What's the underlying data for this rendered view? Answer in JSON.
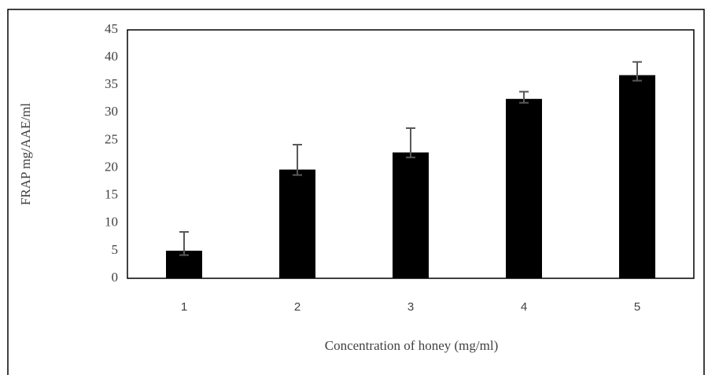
{
  "chart_data": {
    "type": "bar",
    "x_label": "Concentration of honey (mg/ml)",
    "y_label": "FRAP mg/AAE/ml",
    "categories": [
      "1",
      "2",
      "3",
      "4",
      "5"
    ],
    "values": [
      5,
      19.7,
      22.8,
      32.5,
      36.8
    ],
    "error_plus": [
      3.4,
      4.5,
      4.4,
      1.3,
      2.4
    ],
    "error_minus": [
      0.8,
      1.0,
      0.9,
      0.7,
      1.0
    ],
    "color": "#000000",
    "error_color": "#595959",
    "ylim": [
      0,
      45
    ],
    "yticks": [
      0,
      5,
      10,
      15,
      20,
      25,
      30,
      35,
      40,
      45
    ],
    "grid": false
  }
}
